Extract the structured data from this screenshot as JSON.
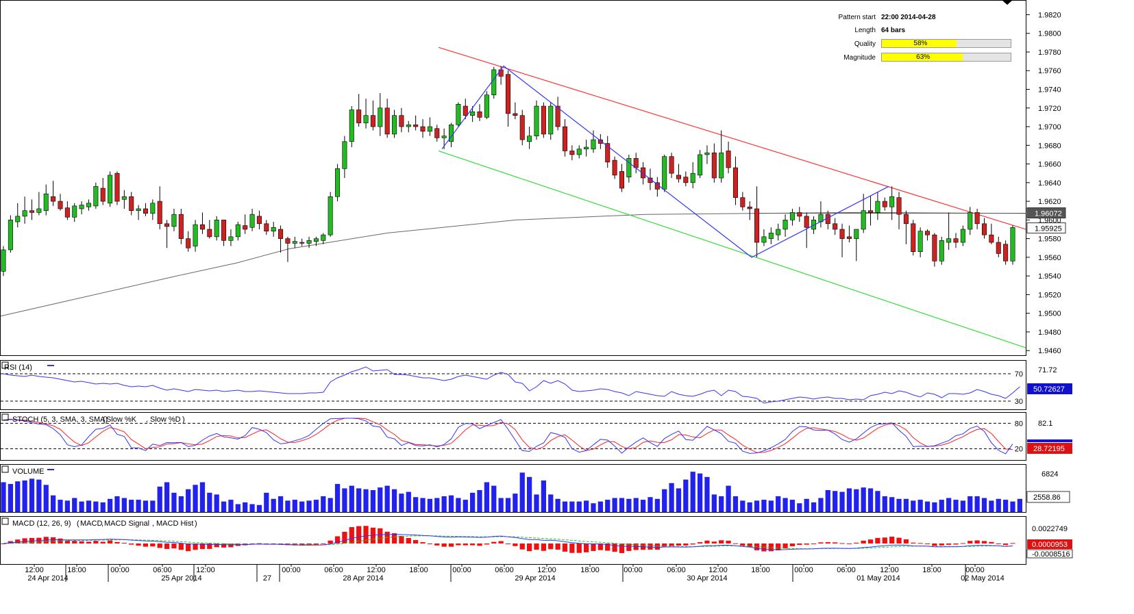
{
  "pattern_info": {
    "start_label": "Pattern start",
    "start_value": "22:00 2014-04-28",
    "length_label": "Length",
    "length_value": "64 bars",
    "quality_label": "Quality",
    "quality_text": "58%",
    "quality_pct": 58,
    "magnitude_label": "Magnitude",
    "magnitude_text": "63%",
    "magnitude_pct": 63
  },
  "indicators": {
    "rsi_label": "RSI (14)",
    "rsi_levels": [
      "70",
      "30"
    ],
    "rsi_axis": "71.72",
    "rsi_value": "50.72627",
    "stoch_label": "STOCH (5, 3, SMA, 3, SMA)",
    "stoch_k_label": "Slow %K",
    "stoch_d_label": "Slow %D",
    "stoch_levels": [
      "80",
      "20"
    ],
    "stoch_axis": "82.1",
    "stoch_value": "28.72195",
    "volume_label": "VOLUME",
    "volume_axis": "6824",
    "volume_value": "2558.86",
    "macd_label": "MACD (12, 26, 9)",
    "macd_line_label": "MACD",
    "macd_signal_label": "MACD Signal",
    "macd_hist_label": "MACD Hist",
    "macd_axis": "0.0022749",
    "macd_value_1": "0.0000953",
    "macd_value_2": "-0.0008516"
  },
  "price_tags": {
    "tag_1": "1.96072",
    "tag_2": "1.95925"
  },
  "colors": {
    "bull": "#22bb22",
    "bear": "#cc2222",
    "upper_trend": "#ff3333",
    "lower_trend": "#33dd33",
    "zigzag": "#3333ff",
    "ma": "#666666",
    "rsi": "#3333ff",
    "stoch_k": "#3333ff",
    "stoch_d": "#ff2222",
    "volume": "#2222ee",
    "macd_hist": "#ee1111",
    "macd_signal": "#22cc22",
    "quality_fill": "#ffff00"
  },
  "chart_data": {
    "type": "candlestick",
    "title": "",
    "x_ticks": [
      "12:00",
      "18:00",
      "00:00",
      "06:00",
      "12:00",
      "00:00",
      "06:00",
      "12:00",
      "18:00",
      "00:00",
      "06:00",
      "12:00",
      "18:00",
      "00:00",
      "06:00",
      "12:00",
      "18:00",
      "00:00",
      "06:00",
      "12:00",
      "18:00",
      "00:00"
    ],
    "date_labels": [
      "24 Apr 2014",
      "25 Apr 2014",
      "27",
      "28 Apr 2014",
      "29 Apr 2014",
      "30 Apr 2014",
      "01 May 2014",
      "02 May 2014"
    ],
    "y_ticks": [
      "1.9820",
      "1.9800",
      "1.9780",
      "1.9760",
      "1.9740",
      "1.9720",
      "1.9700",
      "1.9680",
      "1.9660",
      "1.9640",
      "1.9620",
      "1.9600",
      "1.9580",
      "1.9560",
      "1.9540",
      "1.9520",
      "1.9500",
      "1.9480",
      "1.9460"
    ],
    "ylim": [
      1.9455,
      1.9835
    ],
    "candles": [
      {
        "o": 1.9545,
        "h": 1.9572,
        "l": 1.954,
        "c": 1.9568
      },
      {
        "o": 1.9568,
        "h": 1.9605,
        "l": 1.9565,
        "c": 1.96
      },
      {
        "o": 1.9598,
        "h": 1.9618,
        "l": 1.9592,
        "c": 1.9604
      },
      {
        "o": 1.9604,
        "h": 1.9625,
        "l": 1.9596,
        "c": 1.961
      },
      {
        "o": 1.961,
        "h": 1.9622,
        "l": 1.96,
        "c": 1.9608
      },
      {
        "o": 1.9608,
        "h": 1.963,
        "l": 1.9605,
        "c": 1.9612
      },
      {
        "o": 1.961,
        "h": 1.9638,
        "l": 1.9605,
        "c": 1.9628
      },
      {
        "o": 1.9625,
        "h": 1.9642,
        "l": 1.9615,
        "c": 1.962
      },
      {
        "o": 1.962,
        "h": 1.9628,
        "l": 1.961,
        "c": 1.9612
      },
      {
        "o": 1.9613,
        "h": 1.962,
        "l": 1.96,
        "c": 1.9603
      },
      {
        "o": 1.9603,
        "h": 1.9618,
        "l": 1.9598,
        "c": 1.9615
      },
      {
        "o": 1.9612,
        "h": 1.962,
        "l": 1.9606,
        "c": 1.9616
      },
      {
        "o": 1.9614,
        "h": 1.9622,
        "l": 1.961,
        "c": 1.9618
      },
      {
        "o": 1.9615,
        "h": 1.964,
        "l": 1.9612,
        "c": 1.9636
      },
      {
        "o": 1.9634,
        "h": 1.9645,
        "l": 1.9616,
        "c": 1.962
      },
      {
        "o": 1.9618,
        "h": 1.9652,
        "l": 1.9614,
        "c": 1.9648
      },
      {
        "o": 1.965,
        "h": 1.9652,
        "l": 1.9616,
        "c": 1.962
      },
      {
        "o": 1.9622,
        "h": 1.9632,
        "l": 1.9612,
        "c": 1.9625
      },
      {
        "o": 1.9625,
        "h": 1.963,
        "l": 1.9605,
        "c": 1.961
      },
      {
        "o": 1.961,
        "h": 1.9616,
        "l": 1.96,
        "c": 1.9612
      },
      {
        "o": 1.9612,
        "h": 1.9618,
        "l": 1.9604,
        "c": 1.9607
      },
      {
        "o": 1.9607,
        "h": 1.9622,
        "l": 1.96,
        "c": 1.9618
      },
      {
        "o": 1.962,
        "h": 1.9636,
        "l": 1.959,
        "c": 1.9596
      },
      {
        "o": 1.9596,
        "h": 1.96,
        "l": 1.957,
        "c": 1.9593
      },
      {
        "o": 1.9593,
        "h": 1.9612,
        "l": 1.9588,
        "c": 1.9606
      },
      {
        "o": 1.9606,
        "h": 1.9612,
        "l": 1.9574,
        "c": 1.958
      },
      {
        "o": 1.958,
        "h": 1.9588,
        "l": 1.9566,
        "c": 1.957
      },
      {
        "o": 1.9572,
        "h": 1.96,
        "l": 1.9566,
        "c": 1.9595
      },
      {
        "o": 1.9595,
        "h": 1.9608,
        "l": 1.9585,
        "c": 1.959
      },
      {
        "o": 1.959,
        "h": 1.96,
        "l": 1.958,
        "c": 1.9582
      },
      {
        "o": 1.9582,
        "h": 1.9604,
        "l": 1.9578,
        "c": 1.96
      },
      {
        "o": 1.96,
        "h": 1.96,
        "l": 1.9572,
        "c": 1.9578
      },
      {
        "o": 1.9578,
        "h": 1.959,
        "l": 1.9572,
        "c": 1.9582
      },
      {
        "o": 1.9582,
        "h": 1.9598,
        "l": 1.9578,
        "c": 1.9595
      },
      {
        "o": 1.9594,
        "h": 1.9606,
        "l": 1.9585,
        "c": 1.959
      },
      {
        "o": 1.9592,
        "h": 1.9612,
        "l": 1.9588,
        "c": 1.9606
      },
      {
        "o": 1.9604,
        "h": 1.961,
        "l": 1.959,
        "c": 1.9596
      },
      {
        "o": 1.9596,
        "h": 1.96,
        "l": 1.9584,
        "c": 1.9588
      },
      {
        "o": 1.9588,
        "h": 1.9598,
        "l": 1.9582,
        "c": 1.9592
      },
      {
        "o": 1.959,
        "h": 1.9594,
        "l": 1.9565,
        "c": 1.958
      },
      {
        "o": 1.958,
        "h": 1.9582,
        "l": 1.9555,
        "c": 1.9575
      },
      {
        "o": 1.9575,
        "h": 1.9582,
        "l": 1.957,
        "c": 1.9577
      },
      {
        "o": 1.9576,
        "h": 1.958,
        "l": 1.9572,
        "c": 1.9575
      },
      {
        "o": 1.9575,
        "h": 1.9582,
        "l": 1.957,
        "c": 1.9578
      },
      {
        "o": 1.9577,
        "h": 1.9582,
        "l": 1.9572,
        "c": 1.958
      },
      {
        "o": 1.9578,
        "h": 1.9586,
        "l": 1.9574,
        "c": 1.9584
      },
      {
        "o": 1.9584,
        "h": 1.963,
        "l": 1.9582,
        "c": 1.9625
      },
      {
        "o": 1.9625,
        "h": 1.966,
        "l": 1.962,
        "c": 1.9655
      },
      {
        "o": 1.9655,
        "h": 1.969,
        "l": 1.9645,
        "c": 1.9684
      },
      {
        "o": 1.9684,
        "h": 1.9722,
        "l": 1.9678,
        "c": 1.9718
      },
      {
        "o": 1.9718,
        "h": 1.9735,
        "l": 1.97,
        "c": 1.9704
      },
      {
        "o": 1.9704,
        "h": 1.973,
        "l": 1.9698,
        "c": 1.9712
      },
      {
        "o": 1.9712,
        "h": 1.9728,
        "l": 1.9696,
        "c": 1.97
      },
      {
        "o": 1.97,
        "h": 1.9736,
        "l": 1.969,
        "c": 1.972
      },
      {
        "o": 1.972,
        "h": 1.973,
        "l": 1.9688,
        "c": 1.9692
      },
      {
        "o": 1.9692,
        "h": 1.9718,
        "l": 1.9688,
        "c": 1.9712
      },
      {
        "o": 1.9712,
        "h": 1.972,
        "l": 1.9694,
        "c": 1.97
      },
      {
        "o": 1.97,
        "h": 1.9706,
        "l": 1.9694,
        "c": 1.9702
      },
      {
        "o": 1.9702,
        "h": 1.9712,
        "l": 1.9696,
        "c": 1.97
      },
      {
        "o": 1.97,
        "h": 1.9708,
        "l": 1.9688,
        "c": 1.9695
      },
      {
        "o": 1.9695,
        "h": 1.971,
        "l": 1.969,
        "c": 1.97
      },
      {
        "o": 1.9698,
        "h": 1.9702,
        "l": 1.9684,
        "c": 1.9688
      },
      {
        "o": 1.9688,
        "h": 1.9698,
        "l": 1.9676,
        "c": 1.969
      },
      {
        "o": 1.9684,
        "h": 1.9704,
        "l": 1.9678,
        "c": 1.9702
      },
      {
        "o": 1.9702,
        "h": 1.9726,
        "l": 1.97,
        "c": 1.9724
      },
      {
        "o": 1.9722,
        "h": 1.973,
        "l": 1.9708,
        "c": 1.9712
      },
      {
        "o": 1.9712,
        "h": 1.9722,
        "l": 1.9705,
        "c": 1.9716
      },
      {
        "o": 1.9716,
        "h": 1.9724,
        "l": 1.9706,
        "c": 1.971
      },
      {
        "o": 1.971,
        "h": 1.9738,
        "l": 1.9708,
        "c": 1.9734
      },
      {
        "o": 1.9734,
        "h": 1.9764,
        "l": 1.973,
        "c": 1.9761
      },
      {
        "o": 1.9761,
        "h": 1.9765,
        "l": 1.9745,
        "c": 1.9754
      },
      {
        "o": 1.9756,
        "h": 1.976,
        "l": 1.97,
        "c": 1.9714
      },
      {
        "o": 1.9714,
        "h": 1.9726,
        "l": 1.9708,
        "c": 1.9712
      },
      {
        "o": 1.9712,
        "h": 1.9718,
        "l": 1.968,
        "c": 1.9686
      },
      {
        "o": 1.9684,
        "h": 1.97,
        "l": 1.9676,
        "c": 1.969
      },
      {
        "o": 1.969,
        "h": 1.9728,
        "l": 1.9686,
        "c": 1.9722
      },
      {
        "o": 1.9722,
        "h": 1.9726,
        "l": 1.9688,
        "c": 1.9692
      },
      {
        "o": 1.9692,
        "h": 1.9726,
        "l": 1.9686,
        "c": 1.9722
      },
      {
        "o": 1.9722,
        "h": 1.9732,
        "l": 1.9696,
        "c": 1.97
      },
      {
        "o": 1.97,
        "h": 1.9708,
        "l": 1.9668,
        "c": 1.9674
      },
      {
        "o": 1.9674,
        "h": 1.968,
        "l": 1.9664,
        "c": 1.967
      },
      {
        "o": 1.967,
        "h": 1.968,
        "l": 1.9666,
        "c": 1.9676
      },
      {
        "o": 1.9676,
        "h": 1.9686,
        "l": 1.9668,
        "c": 1.9678
      },
      {
        "o": 1.9676,
        "h": 1.9696,
        "l": 1.9672,
        "c": 1.9686
      },
      {
        "o": 1.9686,
        "h": 1.9692,
        "l": 1.9676,
        "c": 1.9682
      },
      {
        "o": 1.9682,
        "h": 1.969,
        "l": 1.9656,
        "c": 1.9662
      },
      {
        "o": 1.9664,
        "h": 1.9668,
        "l": 1.9644,
        "c": 1.9648
      },
      {
        "o": 1.9652,
        "h": 1.966,
        "l": 1.963,
        "c": 1.9634
      },
      {
        "o": 1.9646,
        "h": 1.967,
        "l": 1.964,
        "c": 1.9666
      },
      {
        "o": 1.9666,
        "h": 1.9672,
        "l": 1.965,
        "c": 1.9656
      },
      {
        "o": 1.9656,
        "h": 1.9662,
        "l": 1.9638,
        "c": 1.9645
      },
      {
        "o": 1.9645,
        "h": 1.9655,
        "l": 1.9632,
        "c": 1.964
      },
      {
        "o": 1.964,
        "h": 1.9646,
        "l": 1.9625,
        "c": 1.9633
      },
      {
        "o": 1.9633,
        "h": 1.967,
        "l": 1.963,
        "c": 1.9668
      },
      {
        "o": 1.9668,
        "h": 1.9672,
        "l": 1.9645,
        "c": 1.965
      },
      {
        "o": 1.9648,
        "h": 1.966,
        "l": 1.964,
        "c": 1.9644
      },
      {
        "o": 1.9646,
        "h": 1.9652,
        "l": 1.9636,
        "c": 1.964
      },
      {
        "o": 1.964,
        "h": 1.9662,
        "l": 1.9634,
        "c": 1.965
      },
      {
        "o": 1.9648,
        "h": 1.9675,
        "l": 1.9645,
        "c": 1.967
      },
      {
        "o": 1.967,
        "h": 1.968,
        "l": 1.966,
        "c": 1.9672
      },
      {
        "o": 1.9672,
        "h": 1.9682,
        "l": 1.964,
        "c": 1.9645
      },
      {
        "o": 1.9645,
        "h": 1.9696,
        "l": 1.964,
        "c": 1.9672
      },
      {
        "o": 1.9674,
        "h": 1.9684,
        "l": 1.965,
        "c": 1.9656
      },
      {
        "o": 1.9656,
        "h": 1.9668,
        "l": 1.9616,
        "c": 1.9624
      },
      {
        "o": 1.9624,
        "h": 1.963,
        "l": 1.961,
        "c": 1.9614
      },
      {
        "o": 1.9614,
        "h": 1.962,
        "l": 1.96,
        "c": 1.9612
      },
      {
        "o": 1.9612,
        "h": 1.9636,
        "l": 1.956,
        "c": 1.9576
      },
      {
        "o": 1.9576,
        "h": 1.959,
        "l": 1.9572,
        "c": 1.9582
      },
      {
        "o": 1.958,
        "h": 1.9592,
        "l": 1.9574,
        "c": 1.9586
      },
      {
        "o": 1.9584,
        "h": 1.9596,
        "l": 1.9578,
        "c": 1.959
      },
      {
        "o": 1.959,
        "h": 1.9606,
        "l": 1.9582,
        "c": 1.96
      },
      {
        "o": 1.96,
        "h": 1.9612,
        "l": 1.9594,
        "c": 1.9608
      },
      {
        "o": 1.9608,
        "h": 1.9614,
        "l": 1.9598,
        "c": 1.9604
      },
      {
        "o": 1.9604,
        "h": 1.9608,
        "l": 1.957,
        "c": 1.9592
      },
      {
        "o": 1.959,
        "h": 1.9604,
        "l": 1.9585,
        "c": 1.96
      },
      {
        "o": 1.9598,
        "h": 1.962,
        "l": 1.9592,
        "c": 1.9606
      },
      {
        "o": 1.9606,
        "h": 1.961,
        "l": 1.959,
        "c": 1.9596
      },
      {
        "o": 1.9596,
        "h": 1.9602,
        "l": 1.9584,
        "c": 1.959
      },
      {
        "o": 1.959,
        "h": 1.9596,
        "l": 1.956,
        "c": 1.958
      },
      {
        "o": 1.9582,
        "h": 1.9594,
        "l": 1.9576,
        "c": 1.958
      },
      {
        "o": 1.958,
        "h": 1.959,
        "l": 1.9556,
        "c": 1.959
      },
      {
        "o": 1.959,
        "h": 1.9628,
        "l": 1.9586,
        "c": 1.961
      },
      {
        "o": 1.961,
        "h": 1.9626,
        "l": 1.9594,
        "c": 1.9608
      },
      {
        "o": 1.9608,
        "h": 1.963,
        "l": 1.96,
        "c": 1.962
      },
      {
        "o": 1.962,
        "h": 1.9624,
        "l": 1.961,
        "c": 1.9614
      },
      {
        "o": 1.9614,
        "h": 1.9636,
        "l": 1.96,
        "c": 1.9625
      },
      {
        "o": 1.9624,
        "h": 1.963,
        "l": 1.959,
        "c": 1.9606
      },
      {
        "o": 1.9606,
        "h": 1.961,
        "l": 1.9574,
        "c": 1.9596
      },
      {
        "o": 1.9596,
        "h": 1.96,
        "l": 1.9562,
        "c": 1.9566
      },
      {
        "o": 1.9566,
        "h": 1.9592,
        "l": 1.956,
        "c": 1.9588
      },
      {
        "o": 1.9588,
        "h": 1.959,
        "l": 1.9578,
        "c": 1.9584
      },
      {
        "o": 1.9584,
        "h": 1.9586,
        "l": 1.955,
        "c": 1.9556
      },
      {
        "o": 1.9556,
        "h": 1.9582,
        "l": 1.9552,
        "c": 1.9578
      },
      {
        "o": 1.9576,
        "h": 1.9608,
        "l": 1.9568,
        "c": 1.958
      },
      {
        "o": 1.958,
        "h": 1.9586,
        "l": 1.957,
        "c": 1.9576
      },
      {
        "o": 1.9576,
        "h": 1.9594,
        "l": 1.9572,
        "c": 1.959
      },
      {
        "o": 1.959,
        "h": 1.9614,
        "l": 1.9584,
        "c": 1.9608
      },
      {
        "o": 1.9608,
        "h": 1.9612,
        "l": 1.959,
        "c": 1.9596
      },
      {
        "o": 1.9596,
        "h": 1.9602,
        "l": 1.958,
        "c": 1.9584
      },
      {
        "o": 1.9584,
        "h": 1.9596,
        "l": 1.9574,
        "c": 1.9576
      },
      {
        "o": 1.9576,
        "h": 1.9582,
        "l": 1.956,
        "c": 1.9564
      },
      {
        "o": 1.9574,
        "h": 1.9578,
        "l": 1.9552,
        "c": 1.9556
      },
      {
        "o": 1.9556,
        "h": 1.9594,
        "l": 1.9552,
        "c": 1.9592
      }
    ],
    "ma_line": [
      [
        0,
        1.9497
      ],
      [
        40,
        1.9518
      ],
      [
        80,
        1.9539
      ],
      [
        110,
        1.9554
      ],
      [
        134,
        1.9569
      ],
      [
        180,
        1.9586
      ],
      [
        240,
        1.96
      ],
      [
        300,
        1.9606
      ],
      [
        400,
        1.9608
      ],
      [
        477,
        1.9607
      ]
    ],
    "upper_trendline": [
      [
        640,
        1.9785
      ],
      [
        1497,
        1.959
      ]
    ],
    "lower_trendline": [
      [
        640,
        1.9674
      ],
      [
        1497,
        1.9463
      ]
    ],
    "zigzag": [
      [
        645,
        1.9676
      ],
      [
        735,
        1.9765
      ],
      [
        1097,
        1.956
      ],
      [
        1297,
        1.9636
      ]
    ],
    "rsi": [
      70,
      68,
      67,
      66,
      68,
      66,
      65,
      64,
      62,
      60,
      58,
      59,
      57,
      55,
      56,
      55,
      56,
      53,
      51,
      52,
      51,
      53,
      49,
      46,
      48,
      46,
      44,
      47,
      46,
      45,
      46,
      44,
      45,
      46,
      44,
      44,
      45,
      44,
      43,
      42,
      41,
      41,
      41,
      42,
      42,
      43,
      58,
      64,
      68,
      73,
      76,
      80,
      74,
      75,
      76,
      69,
      69,
      68,
      66,
      64,
      64,
      62,
      60,
      62,
      66,
      68,
      66,
      64,
      62,
      68,
      72,
      69,
      58,
      56,
      45,
      51,
      60,
      56,
      60,
      55,
      46,
      44,
      45,
      46,
      48,
      47,
      44,
      42,
      38,
      44,
      42,
      40,
      38,
      37,
      44,
      40,
      38,
      37,
      40,
      44,
      46,
      38,
      46,
      44,
      37,
      36,
      34,
      27,
      29,
      30,
      32,
      34,
      36,
      35,
      33,
      35,
      36,
      34,
      34,
      32,
      33,
      32,
      38,
      40,
      43,
      41,
      45,
      43,
      39,
      36,
      42,
      40,
      35,
      41,
      41,
      40,
      42,
      47,
      44,
      40,
      38,
      34,
      42,
      51
    ]
  }
}
